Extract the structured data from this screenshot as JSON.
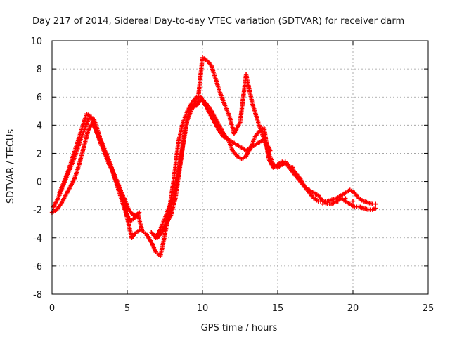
{
  "chart_data": {
    "type": "scatter",
    "title": "Day 217 of 2014, Sidereal Day-to-day VTEC variation (SDTVAR) for receiver darm",
    "xlabel": "GPS time / hours",
    "ylabel": "SDTVAR / TECUs",
    "xlim": [
      0,
      25
    ],
    "ylim": [
      -8,
      10
    ],
    "xticks": [
      "0",
      "5",
      "10",
      "15",
      "20",
      "25"
    ],
    "yticks": [
      "-8",
      "-6",
      "-4",
      "-2",
      "0",
      "2",
      "4",
      "6",
      "8",
      "10"
    ],
    "grid": true,
    "legend": "none",
    "marker": "plus",
    "color": "#ff0000",
    "series": [
      {
        "x": [
          0.0,
          0.3,
          0.6,
          0.9,
          1.2,
          1.5,
          1.8,
          2.1,
          2.4,
          2.7,
          3.0,
          3.3,
          3.6,
          3.9,
          4.2,
          4.5,
          4.8,
          5.1,
          5.4,
          5.7,
          6.0,
          6.3,
          6.6,
          6.9,
          7.2,
          7.5,
          7.8,
          8.1,
          8.4,
          8.7,
          9.0,
          9.3,
          9.6,
          9.9,
          10.2,
          10.5,
          10.8,
          11.1,
          11.4,
          11.7,
          12.0,
          12.3,
          12.6,
          12.9,
          13.2,
          13.5,
          13.8,
          14.1,
          14.4,
          14.7,
          15.0,
          15.3,
          15.6,
          15.9,
          16.2,
          16.5,
          16.8,
          17.1,
          17.4,
          17.7,
          18.0,
          18.3,
          18.6,
          18.9,
          19.2,
          19.5,
          19.8,
          20.1,
          20.4,
          20.7,
          21.0,
          21.3,
          21.5
        ],
        "y": [
          -2.2,
          -2.0,
          -1.6,
          -1.0,
          -0.4,
          0.2,
          1.2,
          2.4,
          3.6,
          4.2,
          3.4,
          2.8,
          2.0,
          1.2,
          0.2,
          -0.6,
          -1.2,
          -2.0,
          -2.4,
          -2.3,
          -3.5,
          -3.8,
          -4.3,
          -5.0,
          -5.3,
          -3.8,
          -2.0,
          0.2,
          2.8,
          4.2,
          5.0,
          5.6,
          6.0,
          6.0,
          5.4,
          4.8,
          4.2,
          3.6,
          3.2,
          3.0,
          2.8,
          2.6,
          2.4,
          2.2,
          2.4,
          2.6,
          2.8,
          3.0,
          2.0,
          1.2,
          1.0,
          1.2,
          1.3,
          1.0,
          0.6,
          0.2,
          -0.4,
          -0.8,
          -1.2,
          -1.4,
          -1.4,
          -1.4,
          -1.3,
          -1.2,
          -1.0,
          -0.8,
          -0.6,
          -0.8,
          -1.2,
          -1.4,
          -1.5,
          -1.6,
          -1.6
        ]
      },
      {
        "x": [
          0.1,
          0.4,
          0.7,
          1.0,
          1.3,
          1.6,
          1.9,
          2.2,
          2.5,
          2.8,
          3.1,
          3.4,
          3.7,
          4.0,
          4.3,
          4.6,
          4.9,
          5.2,
          5.5,
          5.8,
          6.6,
          6.9,
          7.2,
          7.5,
          7.8,
          8.1,
          8.4,
          8.7,
          9.0,
          9.3,
          9.6,
          9.9,
          10.2,
          10.5,
          10.8,
          11.1,
          11.4,
          11.7,
          12.0,
          12.3,
          12.6,
          12.9,
          13.2,
          13.5,
          13.8,
          14.1,
          14.4,
          14.7,
          15.0,
          15.3,
          15.6,
          15.9,
          16.2,
          16.5,
          16.8,
          17.1,
          17.4,
          17.7,
          18.0,
          18.3,
          18.6,
          18.9,
          19.2,
          19.5,
          19.8,
          20.1,
          20.4,
          20.7,
          21.0,
          21.3,
          21.5
        ],
        "y": [
          -1.8,
          -1.2,
          -0.4,
          0.4,
          1.2,
          2.0,
          3.0,
          3.8,
          4.6,
          4.4,
          3.4,
          2.4,
          1.6,
          0.8,
          -0.2,
          -1.2,
          -2.2,
          -2.8,
          -2.6,
          -2.2,
          -3.6,
          -4.0,
          -3.4,
          -2.6,
          -1.8,
          -1.2,
          0.6,
          2.6,
          4.4,
          5.2,
          5.4,
          5.8,
          5.6,
          5.2,
          4.6,
          4.0,
          3.4,
          3.0,
          2.2,
          1.8,
          1.6,
          1.8,
          2.4,
          3.2,
          3.6,
          3.8,
          1.6,
          1.0,
          1.2,
          1.4,
          1.2,
          0.8,
          0.4,
          0.0,
          -0.4,
          -0.6,
          -0.8,
          -1.0,
          -1.4,
          -1.6,
          -1.6,
          -1.4,
          -1.2,
          -1.4,
          -1.6,
          -1.8,
          -1.8,
          -1.9,
          -2.0,
          -2.0,
          -1.9
        ]
      },
      {
        "x": [
          0.5,
          0.8,
          1.1,
          1.4,
          1.7,
          2.0,
          2.3,
          2.6,
          2.9,
          3.2,
          3.5,
          3.8,
          4.1,
          4.4,
          4.7,
          5.0,
          5.3,
          5.6,
          5.9,
          7.0,
          7.3,
          7.6,
          7.9,
          8.2,
          8.5,
          8.8,
          9.1,
          9.4,
          9.7,
          10.0,
          10.3,
          10.6,
          10.9,
          11.2,
          11.5,
          11.8,
          12.1,
          12.5,
          12.9,
          13.3,
          13.7,
          14.1,
          14.5,
          15.0,
          15.5,
          16.0,
          16.5,
          17.0,
          17.5,
          18.0,
          18.5,
          19.0,
          19.5,
          20.0,
          20.5,
          21.0,
          21.5
        ],
        "y": [
          -0.8,
          0.0,
          0.8,
          1.8,
          2.8,
          3.8,
          4.8,
          4.6,
          3.8,
          2.8,
          2.0,
          1.2,
          0.6,
          -0.2,
          -1.0,
          -2.6,
          -4.0,
          -3.6,
          -3.4,
          -4.0,
          -3.6,
          -3.0,
          -2.4,
          -1.2,
          1.0,
          3.4,
          5.0,
          5.4,
          5.8,
          8.8,
          8.6,
          8.2,
          7.2,
          6.2,
          5.4,
          4.6,
          3.4,
          4.2,
          7.6,
          5.6,
          4.2,
          3.0,
          2.2,
          1.2,
          1.4,
          1.0,
          0.2,
          -0.6,
          -1.2,
          -1.6,
          -1.6,
          -1.4,
          -1.2,
          -1.4,
          -1.8,
          -2.0,
          -1.6
        ]
      }
    ]
  }
}
